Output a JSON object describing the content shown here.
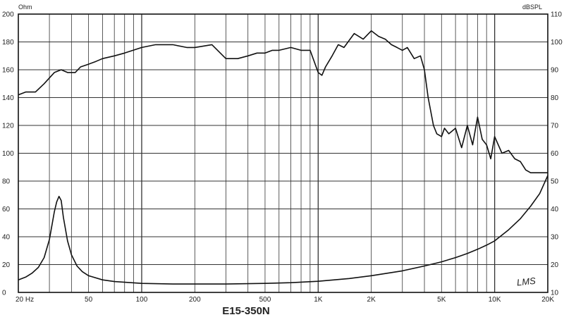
{
  "chart_data": {
    "type": "line",
    "title": "E15-350N",
    "left_axis_unit": "Ohm",
    "right_axis_unit": "dBSPL",
    "x_scale": "log",
    "xlim": [
      20,
      20000
    ],
    "x_ticks": [
      {
        "v": 20,
        "label": "20 Hz"
      },
      {
        "v": 50,
        "label": "50"
      },
      {
        "v": 100,
        "label": "100"
      },
      {
        "v": 200,
        "label": "200"
      },
      {
        "v": 500,
        "label": "500"
      },
      {
        "v": 1000,
        "label": "1K"
      },
      {
        "v": 2000,
        "label": "2K"
      },
      {
        "v": 5000,
        "label": "5K"
      },
      {
        "v": 10000,
        "label": "10K"
      },
      {
        "v": 20000,
        "label": "20K"
      }
    ],
    "left_ylim": [
      0,
      200
    ],
    "left_ticks": [
      "0",
      "20",
      "40",
      "60",
      "80",
      "100",
      "120",
      "140",
      "160",
      "180",
      "200"
    ],
    "right_ylim": [
      10,
      110
    ],
    "right_ticks": [
      "10",
      "20",
      "30",
      "40",
      "50",
      "60",
      "70",
      "80",
      "90",
      "100",
      "110"
    ],
    "grid": true,
    "watermark": "LMS",
    "series": [
      {
        "axis": "right",
        "color": "#111111",
        "x": [
          20,
          22,
          25,
          28,
          32,
          35,
          38,
          42,
          45,
          50,
          55,
          60,
          70,
          80,
          100,
          120,
          150,
          180,
          200,
          250,
          300,
          350,
          400,
          450,
          500,
          550,
          600,
          700,
          800,
          900,
          1000,
          1050,
          1100,
          1200,
          1300,
          1400,
          1600,
          1800,
          2000,
          2200,
          2400,
          2600,
          2800,
          3000,
          3200,
          3500,
          3800,
          4000,
          4200,
          4500,
          4700,
          5000,
          5200,
          5500,
          6000,
          6500,
          7000,
          7500,
          8000,
          8500,
          9000,
          9500,
          10000,
          11000,
          12000,
          13000,
          14000,
          15000,
          16000,
          17000,
          18000,
          20000
        ],
        "y": [
          81,
          82,
          82,
          85,
          89,
          90,
          89,
          89,
          91,
          92,
          93,
          94,
          95,
          96,
          98,
          99,
          99,
          98,
          98,
          99,
          94,
          94,
          95,
          96,
          96,
          97,
          97,
          98,
          97,
          97,
          89,
          88,
          91,
          95,
          99,
          98,
          103,
          101,
          104,
          102,
          101,
          99,
          98,
          97,
          98,
          94,
          95,
          90,
          80,
          70,
          67,
          66,
          69,
          67,
          69,
          62,
          70,
          63,
          73,
          65,
          63,
          58,
          66,
          60,
          61,
          58,
          57,
          54,
          53,
          53,
          53,
          53
        ]
      },
      {
        "axis": "left",
        "color": "#111111",
        "x": [
          20,
          22,
          24,
          26,
          28,
          30,
          31,
          32,
          33,
          34,
          35,
          36,
          38,
          40,
          43,
          46,
          50,
          60,
          70,
          100,
          150,
          200,
          300,
          500,
          700,
          1000,
          1500,
          2000,
          3000,
          4000,
          5000,
          6000,
          7000,
          8000,
          9000,
          10000,
          12000,
          14000,
          16000,
          18000,
          20000
        ],
        "y": [
          9,
          11,
          14,
          18,
          25,
          38,
          48,
          58,
          65,
          69,
          66,
          54,
          37,
          27,
          19,
          15,
          12,
          9,
          7.8,
          6.5,
          6,
          6,
          6,
          6.5,
          7,
          8,
          10,
          12,
          15.5,
          19,
          22,
          25,
          28,
          31,
          34,
          37,
          45,
          53,
          62,
          71,
          84
        ]
      }
    ]
  }
}
